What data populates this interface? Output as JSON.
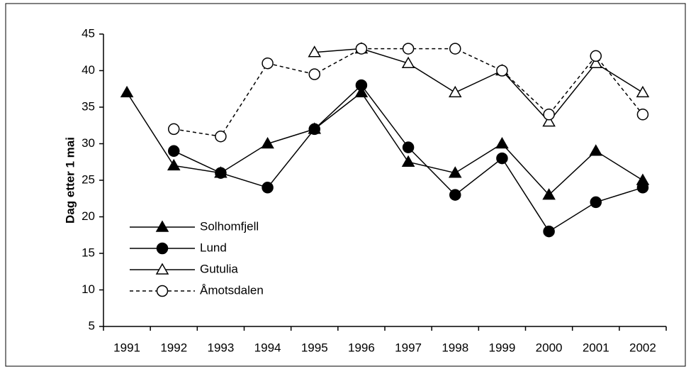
{
  "chart_data": {
    "type": "line",
    "y_label": "Dag etter 1 mai",
    "categories": [
      "1991",
      "1992",
      "1993",
      "1994",
      "1995",
      "1996",
      "1997",
      "1998",
      "1999",
      "2000",
      "2001",
      "2002"
    ],
    "series": [
      {
        "name": "Solhomfjell",
        "color": "#000000",
        "marker": "triangle-filled",
        "dash": false,
        "values": [
          37,
          27,
          26,
          30,
          32,
          37,
          27.5,
          26,
          30,
          23,
          29,
          25
        ]
      },
      {
        "name": "Lund",
        "color": "#000000",
        "marker": "circle-filled",
        "dash": false,
        "values": [
          null,
          29,
          26,
          24,
          32,
          38,
          29.5,
          23,
          28,
          18,
          22,
          24
        ]
      },
      {
        "name": "Gutulia",
        "color": "#000000",
        "marker": "triangle-open",
        "dash": false,
        "values": [
          null,
          null,
          null,
          null,
          42.5,
          43,
          41,
          37,
          40,
          33,
          41,
          37
        ]
      },
      {
        "name": "Åmotsdalen",
        "color": "#000000",
        "marker": "circle-open",
        "dash": true,
        "values": [
          null,
          32,
          31,
          41,
          39.5,
          43,
          43,
          43,
          40,
          34,
          42,
          34
        ]
      }
    ],
    "ylim": [
      5,
      45
    ],
    "yticks": [
      5,
      10,
      15,
      20,
      25,
      30,
      35,
      40,
      45
    ],
    "grid": false,
    "legend": "lower-left"
  }
}
